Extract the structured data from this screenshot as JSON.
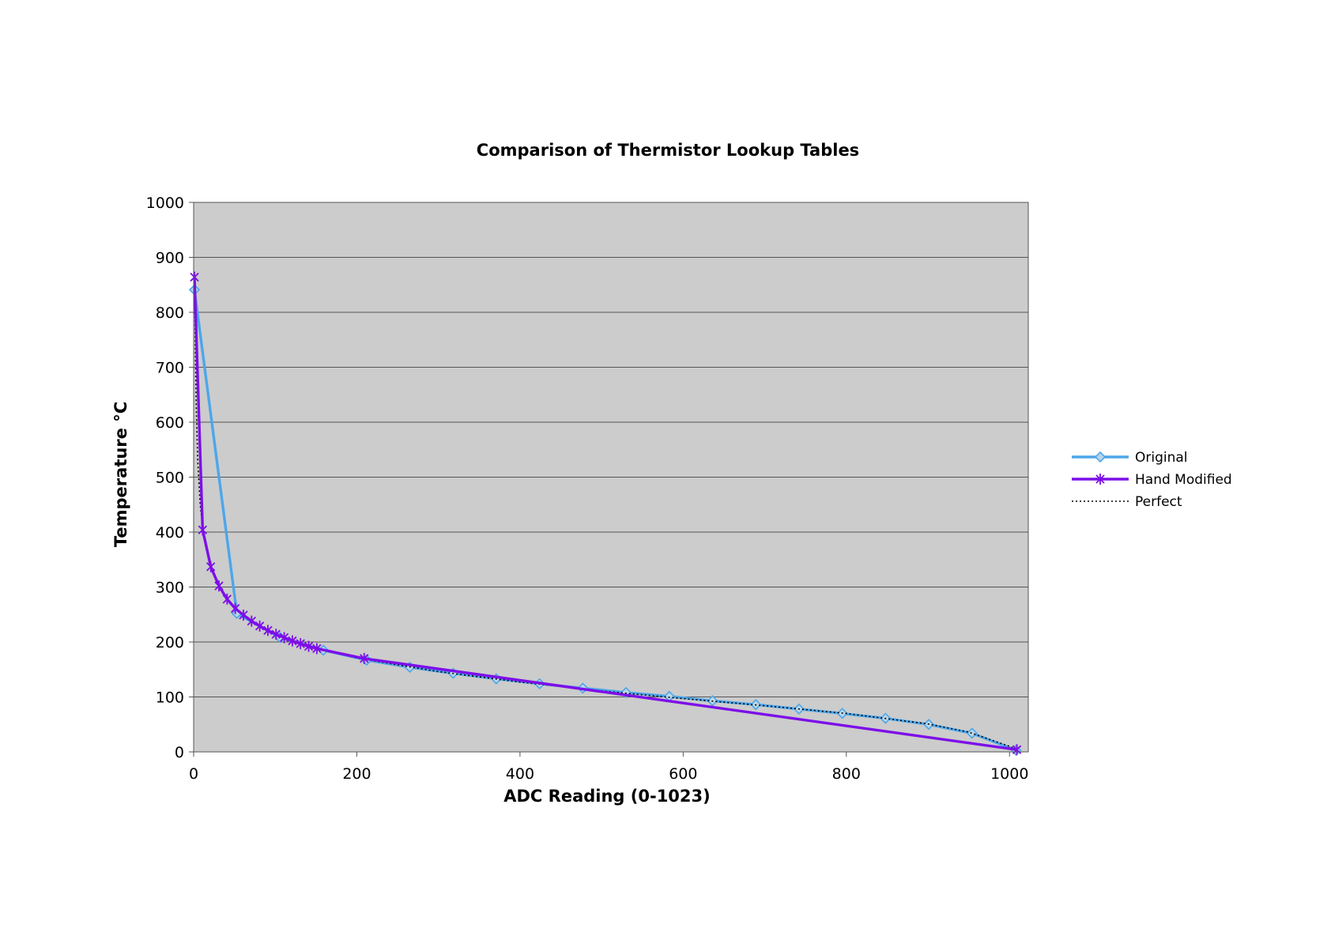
{
  "chart_data": {
    "type": "line",
    "title": "Comparison of Thermistor Lookup Tables",
    "xlabel": "ADC Reading (0-1023)",
    "ylabel": "Temperature °C",
    "xlim": [
      0,
      1023
    ],
    "ylim": [
      0,
      1000
    ],
    "xticks": [
      0,
      200,
      400,
      600,
      800,
      1000
    ],
    "yticks": [
      0,
      100,
      200,
      300,
      400,
      500,
      600,
      700,
      800,
      900,
      1000
    ],
    "grid": "horizontal",
    "legend": "right",
    "plot_background": "#cccccc",
    "series": [
      {
        "name": "Original",
        "color": "#4da6ea",
        "marker": "diamond",
        "x": [
          1,
          53,
          106,
          159,
          212,
          265,
          318,
          371,
          424,
          477,
          530,
          583,
          636,
          689,
          742,
          795,
          848,
          901,
          954,
          1008
        ],
        "y": [
          841,
          252,
          208,
          185,
          167,
          154,
          143,
          133,
          124,
          116,
          108,
          101,
          93,
          86,
          78,
          70,
          61,
          50,
          34,
          3
        ]
      },
      {
        "name": "Hand Modified",
        "color": "#7d0ee8",
        "marker": "asterisk",
        "x": [
          1,
          11,
          21,
          31,
          41,
          51,
          61,
          71,
          81,
          91,
          101,
          111,
          121,
          131,
          141,
          151,
          209,
          1009
        ],
        "y": [
          864,
          404,
          337,
          302,
          278,
          261,
          249,
          238,
          229,
          221,
          214,
          208,
          202,
          197,
          192,
          188,
          170,
          4
        ]
      },
      {
        "name": "Perfect",
        "color": "#000000",
        "dash": "dotted",
        "x": [
          1,
          3,
          5,
          8,
          12,
          16,
          20,
          25,
          30,
          40,
          50,
          60,
          70,
          80,
          90,
          100,
          120,
          140,
          160,
          200,
          300,
          400,
          500,
          600,
          700,
          800,
          900,
          950,
          1000,
          1010
        ],
        "y": [
          850,
          640,
          530,
          450,
          395,
          365,
          340,
          320,
          305,
          280,
          263,
          250,
          239,
          230,
          222,
          215,
          203,
          193,
          185,
          171,
          146,
          127,
          111,
          97,
          84,
          70,
          51,
          36,
          10,
          3
        ]
      }
    ]
  }
}
